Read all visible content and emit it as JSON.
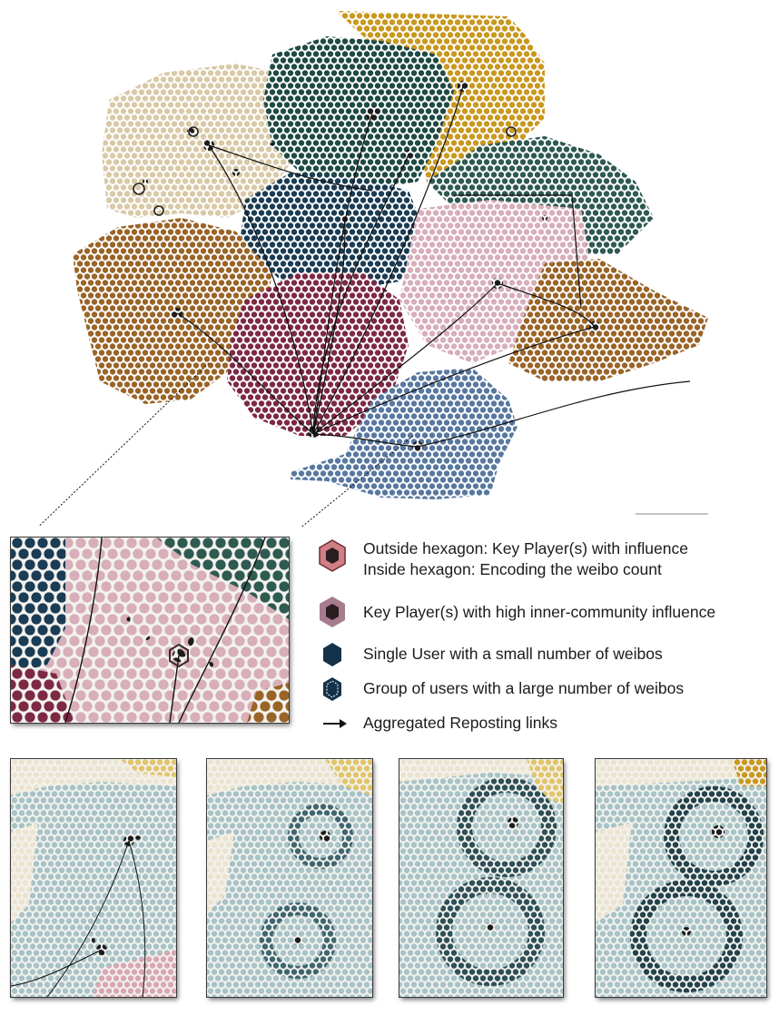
{
  "colors": {
    "gold": "#c9981f",
    "teal_dark": "#1f4a44",
    "teal_mid": "#2e5a52",
    "beige": "#d9c9a7",
    "navy": "#1a3c54",
    "brown": "#9a6427",
    "pink": "#d7aeb9",
    "crimson": "#7d2946",
    "blue": "#5878a0",
    "pale_blue": "#a7c3c7",
    "dark": "#1c1c1c"
  },
  "legend": {
    "items": [
      {
        "icon": "hexagon-outlined-icon",
        "line1": "Outside hexagon: Key Player(s) with influence",
        "line2": "Inside hexagon: Encoding the weibo count"
      },
      {
        "icon": "hexagon-mauve-icon",
        "line1": "Key Player(s) with high inner-community influence"
      },
      {
        "icon": "hexagon-solid-icon",
        "line1": "Single User with a small number of weibos"
      },
      {
        "icon": "hexagon-dotted-icon",
        "line1": "Group of users with a large number of weibos"
      },
      {
        "icon": "arrow-right-icon",
        "line1": "Aggregated  Reposting links"
      }
    ]
  }
}
